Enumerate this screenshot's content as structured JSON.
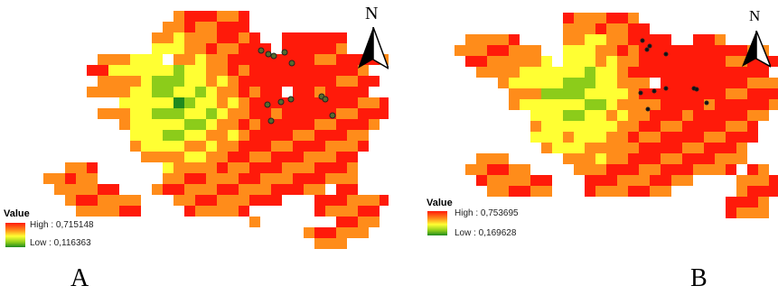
{
  "panels": [
    {
      "id": "A",
      "label": "A",
      "north_label": "N",
      "legend": {
        "title": "Value",
        "high": "High : 0,715148",
        "low": "Low : 0,116363"
      }
    },
    {
      "id": "B",
      "label": "B",
      "north_label": "N",
      "legend": {
        "title": "Value",
        "high": "High : 0,753695",
        "low": "Low : 0,169628"
      }
    }
  ],
  "colors": {
    "high": "#ff1a0a",
    "mid_high": "#ff8c1a",
    "mid": "#ffff33",
    "mid_low": "#8ccc1a",
    "low": "#1f8a1f"
  },
  "icons": [
    "north-arrow-icon"
  ]
}
